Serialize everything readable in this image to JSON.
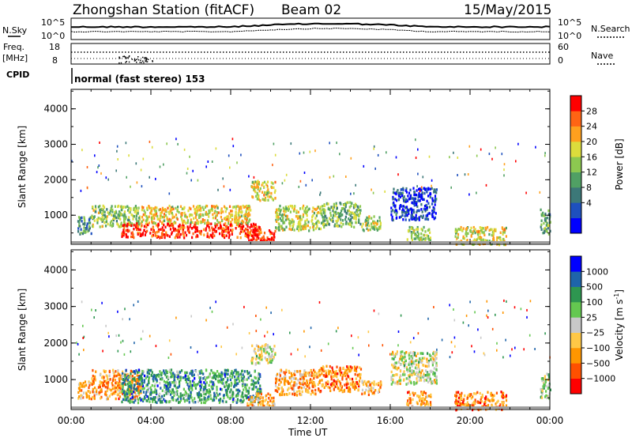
{
  "header": {
    "title": "Zhongshan Station (fitACF)",
    "beam": "Beam 02",
    "date": "15/May/2015"
  },
  "nsky_panel": {
    "left_label": "N.Sky",
    "left_ticks": [
      "10^5",
      "10^0"
    ],
    "right_ticks": [
      "10^5",
      "10^0"
    ],
    "right_label": "N.Search"
  },
  "freq_panel": {
    "left_label_line1": "Freq.",
    "left_label_line2": "[MHz]",
    "left_ticks": [
      "18",
      "8"
    ],
    "right_ticks": [
      "60",
      "0"
    ],
    "right_label": "Nave"
  },
  "cpid_panel": {
    "label": "CPID",
    "mode": "normal (fast stereo) 153"
  },
  "chart_data": [
    {
      "type": "heatmap",
      "name": "power-range-time",
      "ylabel": "Slant Range [km]",
      "yticks": [
        "1000",
        "2000",
        "3000",
        "4000"
      ],
      "ylim": [
        180,
        4550
      ],
      "x_range_hours": [
        0,
        24
      ],
      "colorbar": {
        "label": "Power [dB]",
        "ticks": [
          "28",
          "24",
          "20",
          "16",
          "12",
          "8",
          "4"
        ],
        "range": [
          0,
          32
        ],
        "colors": [
          "#0000ff",
          "#1e50be",
          "#3c7878",
          "#50a064",
          "#8cc850",
          "#dcdc3c",
          "#ffa01e",
          "#ff6414",
          "#ff0000"
        ]
      },
      "regions": [
        {
          "t0": 0.3,
          "t1": 1.0,
          "r0": 500,
          "r1": 1000,
          "level": 0.35
        },
        {
          "t0": 1.0,
          "t1": 3.5,
          "r0": 700,
          "r1": 1300,
          "level": 0.5
        },
        {
          "t0": 2.5,
          "t1": 9.5,
          "r0": 400,
          "r1": 800,
          "level": 0.92
        },
        {
          "t0": 3.5,
          "t1": 9.0,
          "r0": 800,
          "r1": 1300,
          "level": 0.62
        },
        {
          "t0": 8.8,
          "t1": 10.2,
          "r0": 300,
          "r1": 650,
          "level": 0.95
        },
        {
          "t0": 9.0,
          "t1": 10.2,
          "r0": 1450,
          "r1": 2000,
          "level": 0.6
        },
        {
          "t0": 10.2,
          "t1": 12.5,
          "r0": 600,
          "r1": 1300,
          "level": 0.55
        },
        {
          "t0": 12.5,
          "t1": 14.5,
          "r0": 700,
          "r1": 1400,
          "level": 0.45
        },
        {
          "t0": 14.5,
          "t1": 15.5,
          "r0": 600,
          "r1": 1000,
          "level": 0.55
        },
        {
          "t0": 16.0,
          "t1": 18.3,
          "r0": 900,
          "r1": 1800,
          "level": 0.15
        },
        {
          "t0": 16.8,
          "t1": 18.0,
          "r0": 300,
          "r1": 700,
          "level": 0.5
        },
        {
          "t0": 19.2,
          "t1": 21.8,
          "r0": 200,
          "r1": 700,
          "level": 0.6
        },
        {
          "t0": 23.5,
          "t1": 24.0,
          "r0": 500,
          "r1": 1200,
          "level": 0.4
        }
      ]
    },
    {
      "type": "heatmap",
      "name": "velocity-range-time",
      "ylabel": "Slant Range [km]",
      "yticks": [
        "1000",
        "2000",
        "3000",
        "4000"
      ],
      "ylim": [
        180,
        4550
      ],
      "x_range_hours": [
        0,
        24
      ],
      "colorbar": {
        "label": "Velocity [m s",
        "label_sup": "-1",
        "label_end": "]",
        "ticks": [
          "1000",
          "500",
          "100",
          "25",
          "−25",
          "−100",
          "−500",
          "−1000"
        ],
        "range": [
          -1250,
          1250
        ],
        "colors": [
          "#ff0000",
          "#ff5000",
          "#ff9600",
          "#ffc846",
          "#c8c8c8",
          "#64c850",
          "#2e9650",
          "#1e64aa",
          "#0000ff"
        ]
      },
      "regions": [
        {
          "t0": 0.3,
          "t1": 1.0,
          "r0": 500,
          "r1": 1000,
          "level": 0.3
        },
        {
          "t0": 1.0,
          "t1": 3.5,
          "r0": 500,
          "r1": 1300,
          "level": 0.3
        },
        {
          "t0": 2.5,
          "t1": 9.5,
          "r0": 400,
          "r1": 1300,
          "level": 0.72
        },
        {
          "t0": 8.8,
          "t1": 10.2,
          "r0": 300,
          "r1": 650,
          "level": 0.3
        },
        {
          "t0": 9.0,
          "t1": 10.2,
          "r0": 1450,
          "r1": 2000,
          "level": 0.5
        },
        {
          "t0": 10.2,
          "t1": 12.5,
          "r0": 600,
          "r1": 1300,
          "level": 0.3
        },
        {
          "t0": 12.5,
          "t1": 14.5,
          "r0": 700,
          "r1": 1400,
          "level": 0.25
        },
        {
          "t0": 14.5,
          "t1": 15.5,
          "r0": 600,
          "r1": 1000,
          "level": 0.35
        },
        {
          "t0": 16.0,
          "t1": 18.3,
          "r0": 900,
          "r1": 1800,
          "level": 0.5
        },
        {
          "t0": 16.8,
          "t1": 18.0,
          "r0": 300,
          "r1": 700,
          "level": 0.3
        },
        {
          "t0": 19.2,
          "t1": 21.8,
          "r0": 200,
          "r1": 700,
          "level": 0.25
        },
        {
          "t0": 23.5,
          "t1": 24.0,
          "r0": 500,
          "r1": 1200,
          "level": 0.55
        }
      ]
    }
  ],
  "x_axis": {
    "ticks": [
      "00:00",
      "04:00",
      "08:00",
      "12:00",
      "16:00",
      "20:00",
      "00:00"
    ],
    "label": "Time UT"
  }
}
